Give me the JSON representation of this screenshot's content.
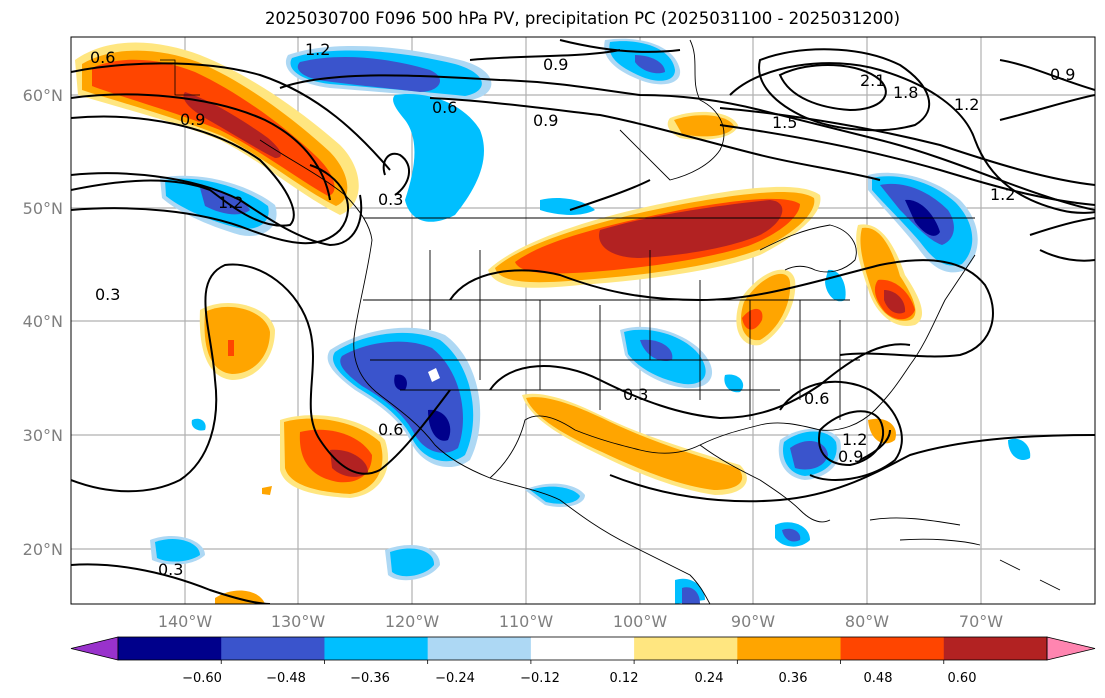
{
  "title": "2025030700 F096 500 hPa PV, precipitation PC (2025031100 - 2025031200)",
  "map": {
    "lat_labels": [
      "60°N",
      "50°N",
      "40°N",
      "30°N",
      "20°N"
    ],
    "lon_labels": [
      "140°W",
      "130°W",
      "120°W",
      "110°W",
      "100°W",
      "90°W",
      "80°W",
      "70°W"
    ],
    "contour_labels": [
      "0.6",
      "1.2",
      "0.9",
      "0.6",
      "0.9",
      "0.9",
      "1.5",
      "1.8",
      "2.1",
      "1.2",
      "0.9",
      "0.3",
      "1.2",
      "1.2",
      "0.3",
      "0.6",
      "0.3",
      "0.6",
      "1.2",
      "0.9",
      "0.3"
    ]
  },
  "colorbar": {
    "ticks": [
      "−0.60",
      "−0.48",
      "−0.36",
      "−0.24",
      "−0.12",
      "0.12",
      "0.24",
      "0.36",
      "0.48",
      "0.60"
    ],
    "colors": [
      "#9932cc",
      "#00008b",
      "#3a54cc",
      "#00bfff",
      "#add8f4",
      "#ffffff",
      "#ffe680",
      "#ffa500",
      "#ff4500",
      "#b22222",
      "#ff85b0"
    ]
  }
}
